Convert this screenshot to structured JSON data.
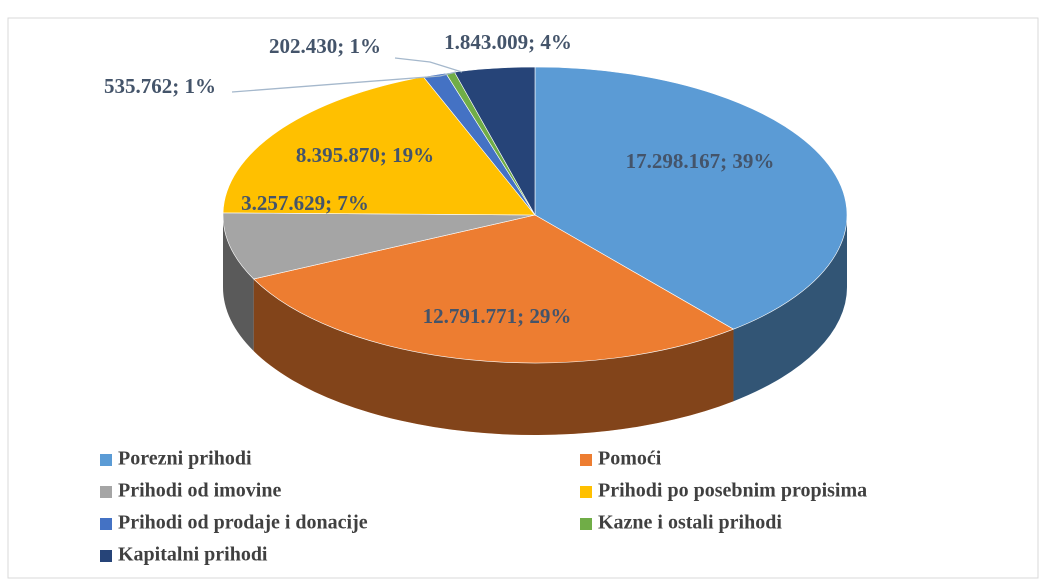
{
  "chart_data": {
    "type": "pie3d",
    "categories": [
      "Porezni prihodi",
      "Pomoći",
      "Prihodi od imovine",
      "Prihodi po posebnim propisima",
      "Prihodi od prodaje i donacije",
      "Kazne i ostali prihodi",
      "Kapitalni prihodi"
    ],
    "values": [
      17298167,
      12791771,
      3257629,
      8395870,
      535762,
      202430,
      1843009
    ],
    "value_labels": [
      "17.298.167; 39%",
      "12.791.771; 29%",
      "3.257.629; 7%",
      "8.395.870; 19%",
      "535.762; 1%",
      "202.430; 1%",
      "1.843.009; 4%"
    ],
    "colors": [
      "#5b9bd5",
      "#ed7d31",
      "#a5a5a5",
      "#ffc000",
      "#4472c4",
      "#70ad47",
      "#264478"
    ],
    "legend": "bottom"
  }
}
